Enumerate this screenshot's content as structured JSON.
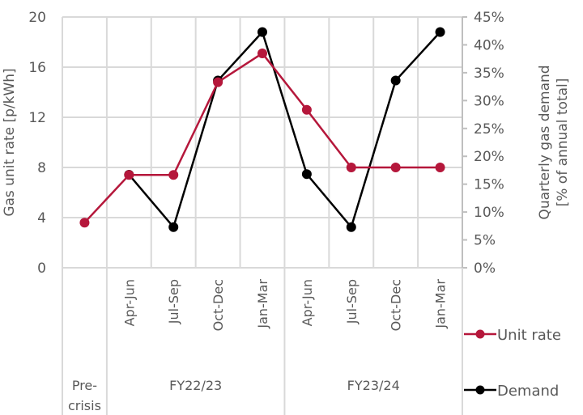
{
  "chart_data": {
    "type": "line",
    "title": "",
    "categories": [
      "Pre-crisis",
      "Apr-Jun",
      "Jul-Sep",
      "Oct-Dec",
      "Jan-Mar",
      "Apr-Jun",
      "Jul-Sep",
      "Oct-Dec",
      "Jan-Mar"
    ],
    "groups": [
      {
        "label": "Pre-\ncrisis",
        "lines": [
          "Pre-",
          "crisis"
        ],
        "span": [
          0,
          0
        ]
      },
      {
        "label": "FY22/23",
        "lines": [
          "FY22/23"
        ],
        "span": [
          1,
          4
        ]
      },
      {
        "label": "FY23/24",
        "lines": [
          "FY23/24"
        ],
        "span": [
          5,
          8
        ]
      }
    ],
    "series": [
      {
        "name": "Unit rate",
        "axis": "left",
        "color": "#B5173B",
        "values": [
          3.6,
          7.4,
          7.4,
          14.8,
          17.1,
          12.6,
          8.0,
          8.0,
          8.0
        ]
      },
      {
        "name": "Demand",
        "axis": "right",
        "color": "#000000",
        "values": [
          null,
          16.7,
          7.3,
          33.6,
          42.3,
          16.8,
          7.3,
          33.6,
          42.3
        ]
      }
    ],
    "y_left": {
      "label": "Gas unit rate [p/kWh]",
      "ylim": [
        0,
        20
      ],
      "ticks": [
        "0",
        "4",
        "8",
        "12",
        "16",
        "20"
      ]
    },
    "y_right": {
      "label_lines": [
        "Quarterly gas demand",
        "[% of annual total]"
      ],
      "ylim": [
        0,
        45
      ],
      "ticks": [
        "0%",
        "5%",
        "10%",
        "15%",
        "20%",
        "25%",
        "30%",
        "35%",
        "40%",
        "45%"
      ]
    },
    "grid": true,
    "legend": {
      "position": "right-bottom",
      "entries": [
        "Unit rate",
        "Demand"
      ]
    }
  }
}
